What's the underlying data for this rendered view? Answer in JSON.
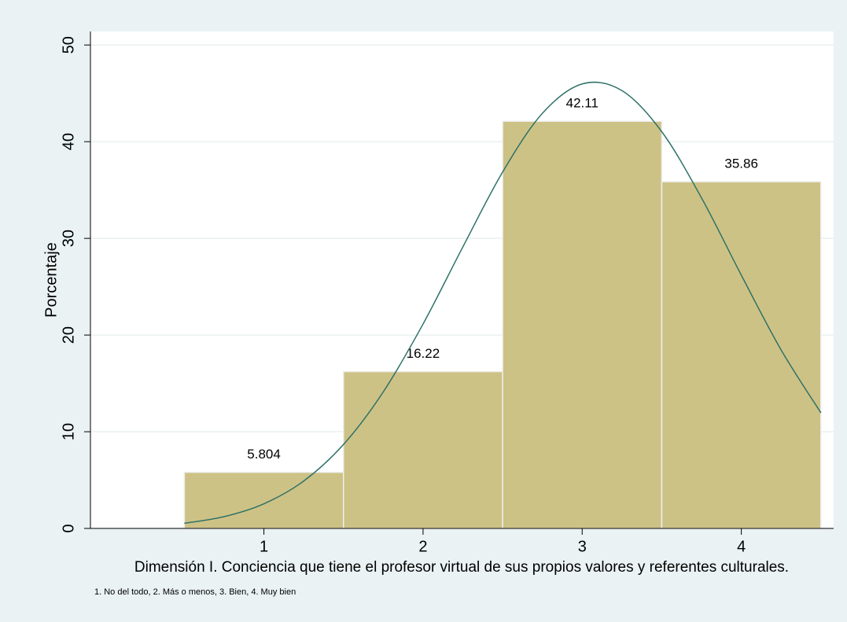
{
  "chart_data": {
    "type": "histogram",
    "bins": [
      0.5,
      1.5,
      2.5,
      3.5,
      4.5
    ],
    "counts": [
      5.804,
      16.22,
      42.11,
      35.86
    ],
    "color": "#cdc285",
    "edge_color": "#eeeeee",
    "curve": {
      "color": "#2f7268",
      "x": [
        0.5,
        0.75,
        1.0,
        1.25,
        1.5,
        1.75,
        2.0,
        2.25,
        2.5,
        2.75,
        3.0,
        3.25,
        3.5,
        3.75,
        4.0,
        4.25,
        4.5
      ],
      "values": [
        0.53,
        1.22,
        2.55,
        4.9,
        8.68,
        14.12,
        21.14,
        29.11,
        36.86,
        42.93,
        45.97,
        45.28,
        41.03,
        34.18,
        26.19,
        18.46,
        11.96
      ]
    },
    "ylabel": "Porcentaje",
    "xlabel": "Dimensión I. Conciencia que tiene el profesor virtual de sus propios valores y referentes culturales.",
    "note": "1. No del todo, 2. Más o menos, 3. Bien, 4. Muy bien",
    "xlim": [
      -0.09,
      4.58
    ],
    "xticks": [
      1,
      2,
      3,
      4
    ],
    "ylim": [
      0,
      51.4
    ],
    "yticks": [
      0,
      10,
      20,
      30,
      40,
      50
    ],
    "grid": true
  }
}
